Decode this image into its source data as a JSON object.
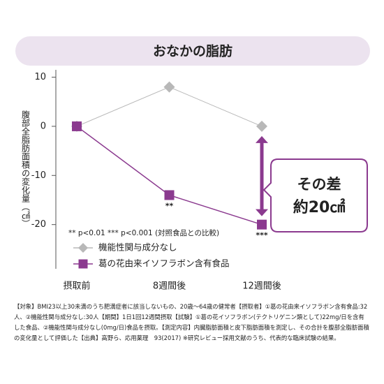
{
  "chart_data": {
    "type": "line",
    "title": "おなかの脂肪",
    "y_label": "腹部全脂肪面積の変化量（㎠）",
    "categories": [
      "摂取前",
      "8週間後",
      "12週間後"
    ],
    "series": [
      {
        "name": "機能性関与成分なし",
        "color": "#b8b8b8",
        "marker": "diamond",
        "values": [
          0,
          8,
          0
        ]
      },
      {
        "name": "葛の花由来イソフラボン含有食品",
        "color": "#8b3a8f",
        "marker": "square",
        "values": [
          0,
          -14,
          -20
        ]
      }
    ],
    "ylim": [
      -29,
      11.5
    ],
    "yticks": [
      10,
      0,
      -10,
      -20
    ],
    "significance": [
      "**",
      "***"
    ],
    "note": "** p<0.01 *** p<0.001 (対照食品との比較)",
    "callout": [
      "その差",
      "約20㎠"
    ]
  },
  "footnote": "【対象】BMI23以上30未満のうち肥満症者に該当しないもの、20歳～64歳の健常者【摂取者】①葛の花由来イソフラボン含有食品:32人、②機能性関与成分なし:30人【期間】1日1回12週間摂取【試験】①葛の花イソフラボン(テクトリゲニン類として)22mg/日を含有した食品、②機能性関与成分なし(0mg/日)食品を摂取。【測定内容】内臓脂肪面積と皮下脂肪面積を測定し、その合計を腹部全脂肪面積の変化量として評価した【出典】高野ら、応用薬理　93(2017) ※研究レビュー採用文献のうち、代表的な臨床試験の結果。"
}
